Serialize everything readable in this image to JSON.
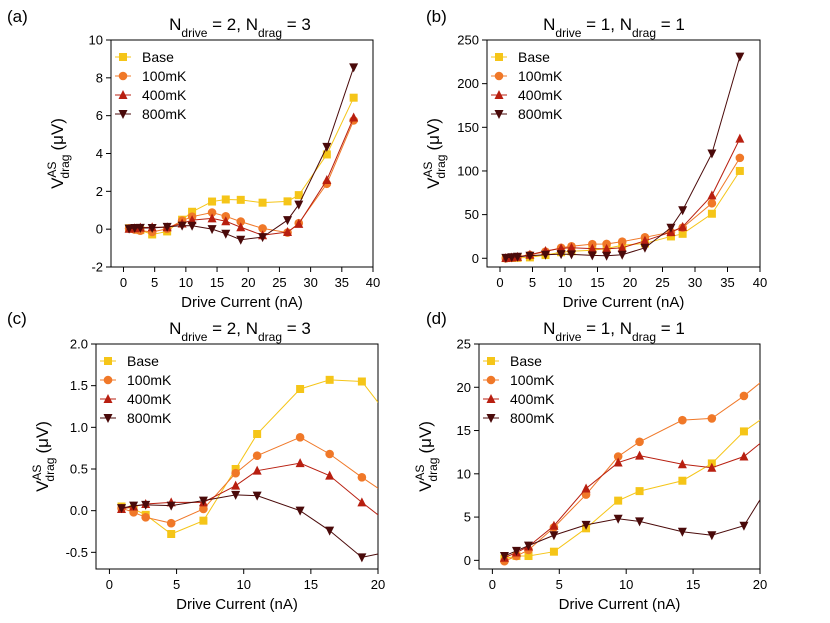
{
  "chart_data": [
    {
      "type": "line",
      "panel_label": "(a)",
      "title": "N_drive = 2, N_drag = 3",
      "xlabel": "Drive Current (nA)",
      "ylabel": "V^AS_drag (μV)",
      "xlim": [
        -2,
        40
      ],
      "ylim": [
        -2,
        10
      ],
      "xticks": [
        0,
        5,
        10,
        15,
        20,
        25,
        30,
        35,
        40
      ],
      "yticks": [
        -2,
        0,
        2,
        4,
        6,
        8,
        10
      ],
      "legend_position": "top-left",
      "series": [
        {
          "name": "Base",
          "marker": "square",
          "color": "#F5C518",
          "x": [
            0.9,
            1.8,
            2.7,
            4.6,
            7.0,
            9.4,
            11.0,
            14.2,
            16.4,
            18.8,
            22.3,
            26.3,
            28.1,
            32.6,
            36.9
          ],
          "y": [
            0.05,
            0.02,
            -0.05,
            -0.28,
            -0.12,
            0.5,
            0.92,
            1.46,
            1.57,
            1.55,
            1.4,
            1.47,
            1.8,
            3.95,
            6.95
          ]
        },
        {
          "name": "100mK",
          "marker": "circle",
          "color": "#F07828",
          "x": [
            0.9,
            1.8,
            2.7,
            4.6,
            7.0,
            9.4,
            11.0,
            14.2,
            16.4,
            18.8,
            22.3,
            26.3,
            28.1,
            32.6,
            36.9
          ],
          "y": [
            0.03,
            -0.02,
            -0.08,
            -0.15,
            0.02,
            0.45,
            0.66,
            0.88,
            0.68,
            0.4,
            0.04,
            -0.18,
            0.32,
            2.4,
            5.75
          ]
        },
        {
          "name": "400mK",
          "marker": "triangle-up",
          "color": "#B81F10",
          "x": [
            0.9,
            1.8,
            2.7,
            4.6,
            7.0,
            9.4,
            11.0,
            14.2,
            16.4,
            18.8,
            22.3,
            26.3,
            28.1,
            32.6,
            36.9
          ],
          "y": [
            0.02,
            0.05,
            0.08,
            0.1,
            0.1,
            0.3,
            0.48,
            0.57,
            0.42,
            0.1,
            -0.32,
            -0.15,
            0.28,
            2.6,
            5.9
          ]
        },
        {
          "name": "800mK",
          "marker": "triangle-down",
          "color": "#4A0A0A",
          "x": [
            0.9,
            1.8,
            2.7,
            4.6,
            7.0,
            9.4,
            11.0,
            14.2,
            16.4,
            18.8,
            22.3,
            26.3,
            28.1,
            32.6,
            36.9
          ],
          "y": [
            0.03,
            0.06,
            0.07,
            0.06,
            0.12,
            0.19,
            0.18,
            0.0,
            -0.24,
            -0.56,
            -0.42,
            0.48,
            1.3,
            4.35,
            8.55
          ]
        }
      ]
    },
    {
      "type": "line",
      "panel_label": "(b)",
      "title": "N_drive = 1, N_drag = 1",
      "xlabel": "Drive Current (nA)",
      "ylabel": "V^AS_drag (μV)",
      "xlim": [
        -2,
        40
      ],
      "ylim": [
        -10,
        250
      ],
      "xticks": [
        0,
        5,
        10,
        15,
        20,
        25,
        30,
        35,
        40
      ],
      "yticks": [
        0,
        50,
        100,
        150,
        200,
        250
      ],
      "legend_position": "top-left",
      "series": [
        {
          "name": "Base",
          "marker": "square",
          "color": "#F5C518",
          "x": [
            0.9,
            1.8,
            2.7,
            4.6,
            7.0,
            9.4,
            11.0,
            14.2,
            16.4,
            18.8,
            22.3,
            26.3,
            28.1,
            32.6,
            36.9
          ],
          "y": [
            0.2,
            0.5,
            0.5,
            1.0,
            3.7,
            6.9,
            8.0,
            9.2,
            11.2,
            14.9,
            17.0,
            25.0,
            28.0,
            51.0,
            100.0
          ]
        },
        {
          "name": "100mK",
          "marker": "circle",
          "color": "#F07828",
          "x": [
            0.9,
            1.8,
            2.7,
            4.6,
            7.0,
            9.4,
            11.0,
            14.2,
            16.4,
            18.8,
            22.3,
            26.3,
            28.1,
            32.6,
            36.9
          ],
          "y": [
            -0.1,
            0.5,
            1.2,
            3.8,
            7.6,
            12.0,
            13.7,
            16.2,
            16.4,
            19.0,
            24.0,
            30.0,
            35.0,
            63.0,
            115.0
          ]
        },
        {
          "name": "400mK",
          "marker": "triangle-up",
          "color": "#B81F10",
          "x": [
            0.9,
            1.8,
            2.7,
            4.6,
            7.0,
            9.4,
            11.0,
            14.2,
            16.4,
            18.8,
            22.3,
            26.3,
            28.1,
            32.6,
            36.9
          ],
          "y": [
            0.3,
            0.9,
            1.6,
            4.0,
            8.3,
            11.3,
            12.1,
            11.1,
            10.7,
            12.0,
            20.0,
            30.0,
            36.0,
            72.0,
            137.0
          ]
        },
        {
          "name": "800mK",
          "marker": "triangle-down",
          "color": "#4A0A0A",
          "x": [
            0.9,
            1.8,
            2.7,
            4.6,
            7.0,
            9.4,
            11.0,
            14.2,
            16.4,
            18.8,
            22.3,
            26.3,
            28.1,
            32.6,
            36.9
          ],
          "y": [
            0.5,
            1.1,
            1.7,
            2.9,
            4.1,
            4.8,
            4.5,
            3.3,
            2.9,
            4.0,
            12.0,
            35.0,
            55.0,
            120.0,
            231.0
          ]
        }
      ]
    },
    {
      "type": "line",
      "panel_label": "(c)",
      "title": "N_drive = 2, N_drag = 3",
      "xlabel": "Drive Current (nA)",
      "ylabel": "V^AS_drag (μV)",
      "xlim": [
        -1,
        20
      ],
      "ylim": [
        -0.7,
        2.0
      ],
      "xticks": [
        0,
        5,
        10,
        15,
        20
      ],
      "yticks": [
        -0.5,
        0.0,
        0.5,
        1.0,
        1.5,
        2.0
      ],
      "ytick_labels": [
        "-0.5",
        "0.0",
        "0.5",
        "1.0",
        "1.5",
        "2.0"
      ],
      "legend_position": "top-left",
      "series": [
        {
          "name": "Base",
          "marker": "square",
          "color": "#F5C518",
          "x": [
            0.9,
            1.8,
            2.7,
            4.6,
            7.0,
            9.4,
            11.0,
            14.2,
            16.4,
            18.8
          ],
          "y": [
            0.05,
            0.02,
            -0.05,
            -0.28,
            -0.12,
            0.5,
            0.92,
            1.46,
            1.57,
            1.55
          ],
          "x_end": 20,
          "y_end": 1.3
        },
        {
          "name": "100mK",
          "marker": "circle",
          "color": "#F07828",
          "x": [
            0.9,
            1.8,
            2.7,
            4.6,
            7.0,
            9.4,
            11.0,
            14.2,
            16.4,
            18.8
          ],
          "y": [
            0.03,
            -0.02,
            -0.08,
            -0.15,
            0.02,
            0.45,
            0.66,
            0.88,
            0.68,
            0.4
          ],
          "x_end": 20,
          "y_end": 0.27
        },
        {
          "name": "400mK",
          "marker": "triangle-up",
          "color": "#B81F10",
          "x": [
            0.9,
            1.8,
            2.7,
            4.6,
            7.0,
            9.4,
            11.0,
            14.2,
            16.4,
            18.8
          ],
          "y": [
            0.02,
            0.05,
            0.08,
            0.1,
            0.1,
            0.3,
            0.48,
            0.57,
            0.42,
            0.1
          ],
          "x_end": 20,
          "y_end": -0.05
        },
        {
          "name": "800mK",
          "marker": "triangle-down",
          "color": "#4A0A0A",
          "x": [
            0.9,
            1.8,
            2.7,
            4.6,
            7.0,
            9.4,
            11.0,
            14.2,
            16.4,
            18.8
          ],
          "y": [
            0.03,
            0.06,
            0.07,
            0.06,
            0.12,
            0.19,
            0.18,
            0.0,
            -0.24,
            -0.56
          ],
          "x_end": 20,
          "y_end": -0.52
        }
      ]
    },
    {
      "type": "line",
      "panel_label": "(d)",
      "title": "N_drive = 1, N_drag = 1",
      "xlabel": "Drive Current (nA)",
      "ylabel": "V^AS_drag (μV)",
      "xlim": [
        -1,
        20
      ],
      "ylim": [
        -1,
        25
      ],
      "xticks": [
        0,
        5,
        10,
        15,
        20
      ],
      "yticks": [
        0,
        5,
        10,
        15,
        20,
        25
      ],
      "legend_position": "top-left",
      "series": [
        {
          "name": "Base",
          "marker": "square",
          "color": "#F5C518",
          "x": [
            0.9,
            1.8,
            2.7,
            4.6,
            7.0,
            9.4,
            11.0,
            14.2,
            16.4,
            18.8
          ],
          "y": [
            0.2,
            0.5,
            0.5,
            1.0,
            3.7,
            6.9,
            8.0,
            9.2,
            11.2,
            14.9
          ],
          "x_end": 20,
          "y_end": 16.2
        },
        {
          "name": "100mK",
          "marker": "circle",
          "color": "#F07828",
          "x": [
            0.9,
            1.8,
            2.7,
            4.6,
            7.0,
            9.4,
            11.0,
            14.2,
            16.4,
            18.8
          ],
          "y": [
            -0.1,
            0.5,
            1.2,
            3.8,
            7.6,
            12.0,
            13.7,
            16.2,
            16.4,
            19.0
          ],
          "x_end": 20,
          "y_end": 20.5
        },
        {
          "name": "400mK",
          "marker": "triangle-up",
          "color": "#B81F10",
          "x": [
            0.9,
            1.8,
            2.7,
            4.6,
            7.0,
            9.4,
            11.0,
            14.2,
            16.4,
            18.8
          ],
          "y": [
            0.3,
            0.9,
            1.6,
            4.0,
            8.3,
            11.3,
            12.1,
            11.1,
            10.7,
            12.0
          ],
          "x_end": 20,
          "y_end": 13.5
        },
        {
          "name": "800mK",
          "marker": "triangle-down",
          "color": "#4A0A0A",
          "x": [
            0.9,
            1.8,
            2.7,
            4.6,
            7.0,
            9.4,
            11.0,
            14.2,
            16.4,
            18.8
          ],
          "y": [
            0.5,
            1.1,
            1.7,
            2.9,
            4.1,
            4.8,
            4.5,
            3.3,
            2.9,
            4.0
          ],
          "x_end": 20,
          "y_end": 7.0
        }
      ]
    }
  ]
}
